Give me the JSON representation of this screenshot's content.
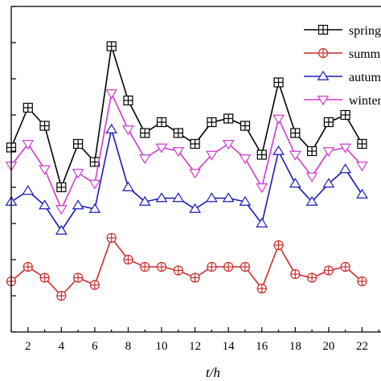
{
  "chart_data": {
    "type": "line",
    "title": "",
    "xlabel": "t/h",
    "ylabel": "",
    "x": [
      1,
      2,
      3,
      4,
      5,
      6,
      7,
      8,
      9,
      10,
      11,
      12,
      13,
      14,
      15,
      16,
      17,
      18,
      19,
      20,
      21,
      22
    ],
    "x_tick_labels": [
      "2",
      "4",
      "6",
      "8",
      "10",
      "12",
      "14",
      "16",
      "18",
      "20",
      "22"
    ],
    "x_ticks": [
      2,
      4,
      6,
      8,
      10,
      12,
      14,
      16,
      18,
      20,
      22
    ],
    "xlim": [
      1,
      23
    ],
    "ylim": [
      0,
      9
    ],
    "y_ticks": [
      0,
      1,
      2,
      3,
      4,
      5,
      6,
      7,
      8,
      9
    ],
    "grid": false,
    "legend_position": "top-right",
    "series": [
      {
        "name": "spring",
        "color": "#000000",
        "marker": "square-cross",
        "values": [
          5.1,
          6.2,
          5.7,
          4.0,
          5.2,
          4.7,
          7.9,
          6.4,
          5.5,
          5.8,
          5.5,
          5.2,
          5.8,
          5.9,
          5.7,
          4.9,
          6.9,
          5.5,
          5.0,
          5.8,
          6.0,
          5.2
        ]
      },
      {
        "name": "summer",
        "color": "#cc2a2a",
        "marker": "circle-cross",
        "values": [
          1.4,
          1.8,
          1.5,
          1.0,
          1.5,
          1.3,
          2.6,
          2.0,
          1.8,
          1.8,
          1.7,
          1.5,
          1.8,
          1.8,
          1.8,
          1.2,
          2.4,
          1.6,
          1.5,
          1.7,
          1.8,
          1.4
        ]
      },
      {
        "name": "autumn",
        "color": "#1a1ab8",
        "marker": "triangle-up",
        "values": [
          3.6,
          3.9,
          3.5,
          2.8,
          3.5,
          3.4,
          5.6,
          4.0,
          3.6,
          3.7,
          3.7,
          3.4,
          3.7,
          3.7,
          3.6,
          3.0,
          5.0,
          4.1,
          3.6,
          4.1,
          4.5,
          3.8
        ]
      },
      {
        "name": "winter",
        "color": "#d03ad0",
        "marker": "triangle-down",
        "values": [
          4.6,
          5.2,
          4.5,
          3.4,
          4.4,
          4.1,
          6.6,
          5.6,
          4.8,
          5.1,
          5.0,
          4.4,
          4.9,
          5.2,
          4.8,
          4.0,
          5.9,
          4.9,
          4.3,
          5.0,
          5.1,
          4.6
        ]
      }
    ]
  }
}
